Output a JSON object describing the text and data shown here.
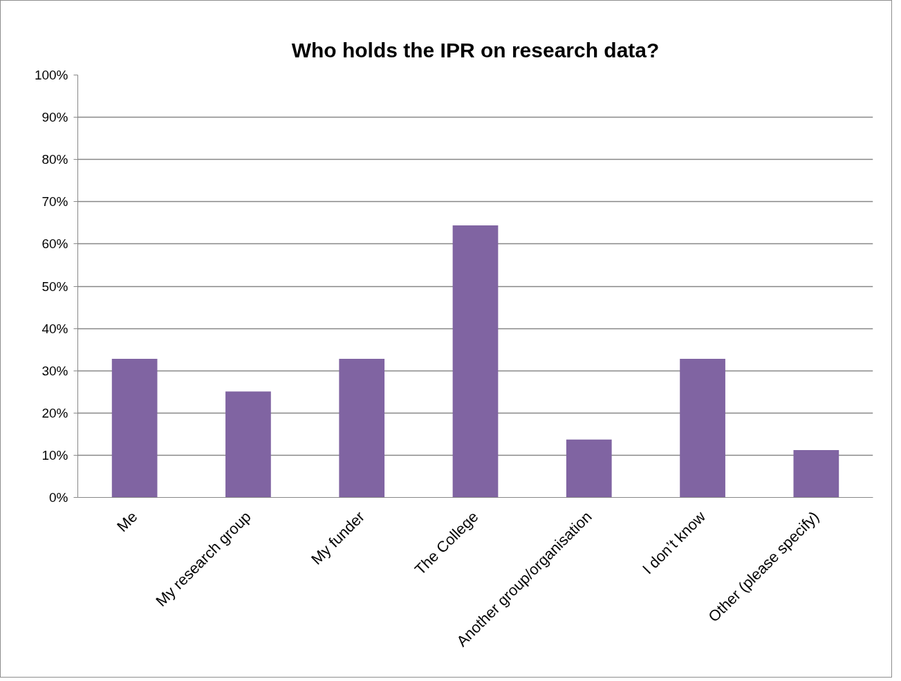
{
  "chart_data": {
    "type": "bar",
    "title": "Who holds the IPR on research data?",
    "categories": [
      "Me",
      "My research group",
      "My funder",
      "The College",
      "Another group/organisation",
      "I don’t know",
      "Other (please specify)"
    ],
    "values": [
      32.8,
      25.1,
      32.8,
      64.4,
      13.7,
      32.8,
      11.2
    ],
    "color": "#8064a2",
    "ylim": [
      0,
      100
    ],
    "yticks": [
      {
        "value": 0,
        "label": "0%"
      },
      {
        "value": 10,
        "label": "10%"
      },
      {
        "value": 20,
        "label": "20%"
      },
      {
        "value": 30,
        "label": "30%"
      },
      {
        "value": 40,
        "label": "40%"
      },
      {
        "value": 50,
        "label": "50%"
      },
      {
        "value": 60,
        "label": "60%"
      },
      {
        "value": 70,
        "label": "70%"
      },
      {
        "value": 80,
        "label": "80%"
      },
      {
        "value": 90,
        "label": "90%"
      },
      {
        "value": 100,
        "label": "100%"
      }
    ],
    "grid": "y"
  }
}
